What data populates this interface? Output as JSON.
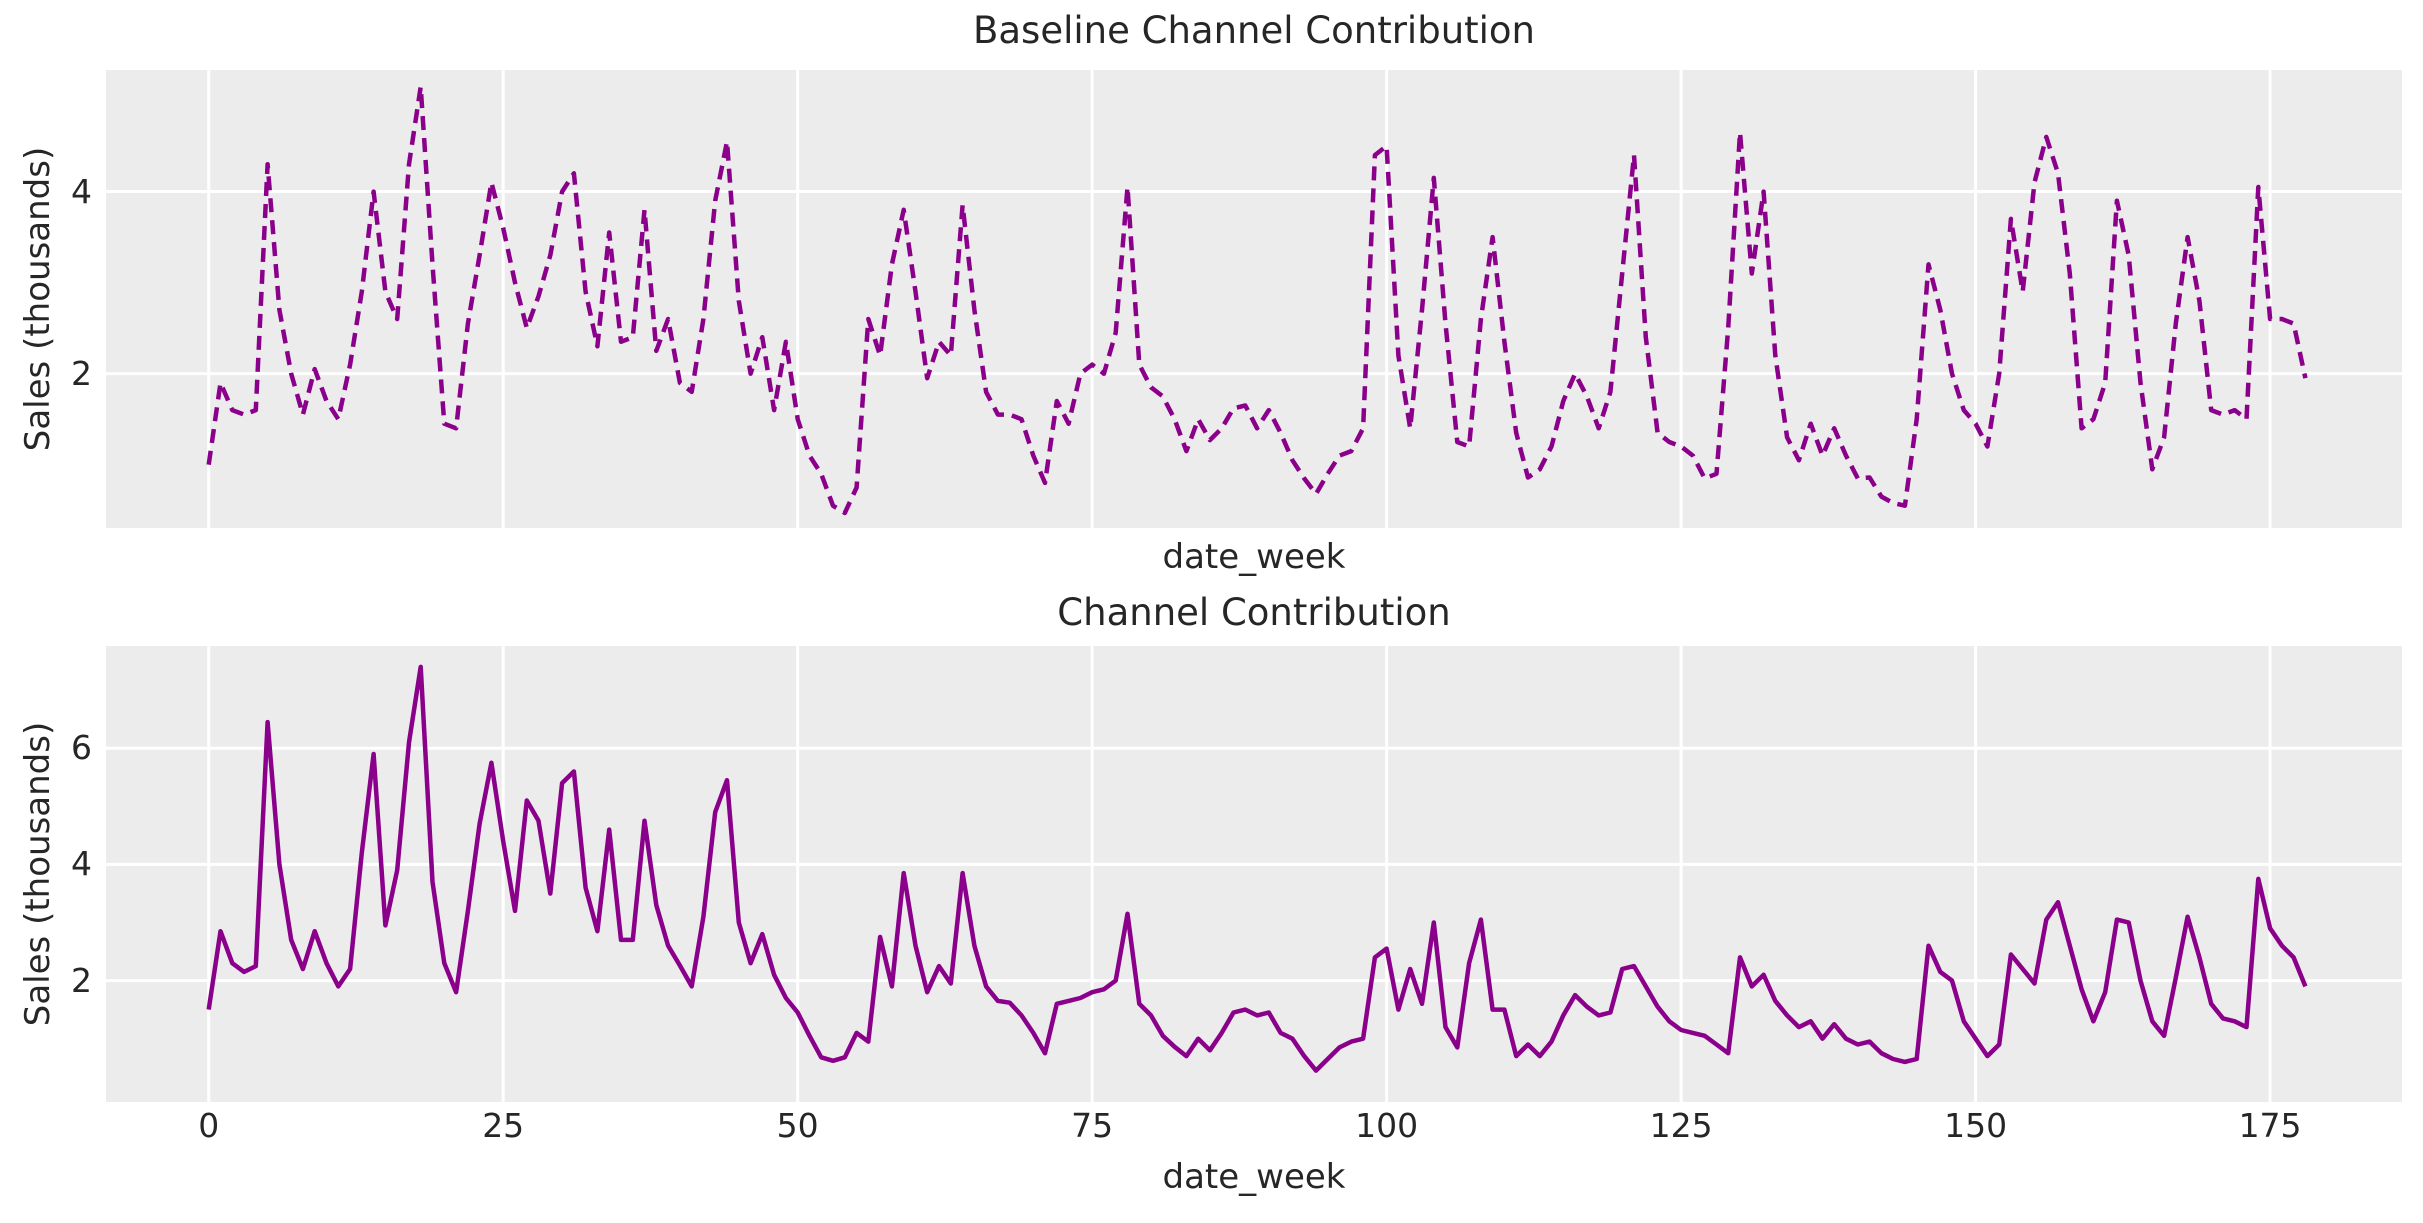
{
  "figure": {
    "background_color": "#ffffff",
    "axes_background_color": "#ECECEC",
    "grid_color": "#ffffff",
    "text_color": "#262626",
    "series_color": "#8B008B"
  },
  "chart_data": [
    {
      "type": "line",
      "title": "Baseline Channel Contribution",
      "xlabel": "date_week",
      "ylabel": "Sales (thousands)",
      "legend": "none",
      "grid": true,
      "line_style": "dashed",
      "color": "#8B008B",
      "x_start": 0,
      "x_step": 1,
      "xlim": [
        -8.72,
        186.2
      ],
      "ylim": [
        0.305,
        5.335
      ],
      "xticks": [
        0,
        25,
        50,
        75,
        100,
        125,
        150,
        175
      ],
      "xtick_labels": [],
      "yticks": [
        2,
        4
      ],
      "ytick_labels": [
        "2",
        "4"
      ],
      "values": [
        1.0,
        1.9,
        1.6,
        1.55,
        1.6,
        4.3,
        2.7,
        2.0,
        1.55,
        2.05,
        1.7,
        1.5,
        2.1,
        2.9,
        4.0,
        2.9,
        2.6,
        4.3,
        5.15,
        3.2,
        1.45,
        1.4,
        2.55,
        3.3,
        4.1,
        3.6,
        3.0,
        2.5,
        2.85,
        3.3,
        4.0,
        4.2,
        2.9,
        2.3,
        3.55,
        2.35,
        2.4,
        3.8,
        2.25,
        2.6,
        1.9,
        1.8,
        2.6,
        3.9,
        4.55,
        2.8,
        2.0,
        2.4,
        1.6,
        2.35,
        1.5,
        1.1,
        0.9,
        0.55,
        0.47,
        0.75,
        2.6,
        2.2,
        3.2,
        3.8,
        2.9,
        1.95,
        2.35,
        2.2,
        3.85,
        2.7,
        1.8,
        1.55,
        1.55,
        1.5,
        1.1,
        0.8,
        1.7,
        1.45,
        2.0,
        2.1,
        2.0,
        2.45,
        4.05,
        2.1,
        1.85,
        1.75,
        1.5,
        1.15,
        1.5,
        1.27,
        1.4,
        1.62,
        1.65,
        1.4,
        1.6,
        1.35,
        1.05,
        0.85,
        0.68,
        0.9,
        1.1,
        1.15,
        1.4,
        4.4,
        4.5,
        2.2,
        1.4,
        2.7,
        4.15,
        2.55,
        1.25,
        1.2,
        2.6,
        3.5,
        2.35,
        1.35,
        0.86,
        0.95,
        1.2,
        1.7,
        2.0,
        1.75,
        1.4,
        1.8,
        3.1,
        4.4,
        2.4,
        1.35,
        1.25,
        1.2,
        1.1,
        0.85,
        0.9,
        2.5,
        4.65,
        3.1,
        4.0,
        2.2,
        1.3,
        1.05,
        1.45,
        1.1,
        1.4,
        1.1,
        0.85,
        0.86,
        0.65,
        0.58,
        0.55,
        1.5,
        3.2,
        2.7,
        2.0,
        1.6,
        1.45,
        1.2,
        2.0,
        3.7,
        2.9,
        4.1,
        4.6,
        4.2,
        3.1,
        1.4,
        1.5,
        1.9,
        3.9,
        3.3,
        1.9,
        0.95,
        1.3,
        2.55,
        3.5,
        2.8,
        1.6,
        1.55,
        1.6,
        1.5,
        4.05,
        2.6,
        2.6,
        2.55,
        1.95
      ]
    },
    {
      "type": "line",
      "title": "Channel Contribution",
      "xlabel": "date_week",
      "ylabel": "Sales (thousands)",
      "legend": "none",
      "grid": true,
      "line_style": "solid",
      "color": "#8B008B",
      "x_start": 0,
      "x_step": 1,
      "xlim": [
        -8.72,
        186.2
      ],
      "ylim": [
        -0.09,
        7.76
      ],
      "xticks": [
        0,
        25,
        50,
        75,
        100,
        125,
        150,
        175
      ],
      "xtick_labels": [
        "0",
        "25",
        "50",
        "75",
        "100",
        "125",
        "150",
        "175"
      ],
      "yticks": [
        2,
        4,
        6
      ],
      "ytick_labels": [
        "2",
        "4",
        "6"
      ],
      "values": [
        1.5,
        2.85,
        2.3,
        2.15,
        2.25,
        6.45,
        4.0,
        2.7,
        2.2,
        2.85,
        2.3,
        1.9,
        2.2,
        4.2,
        5.9,
        2.95,
        3.9,
        6.1,
        7.4,
        3.7,
        2.3,
        1.8,
        3.2,
        4.7,
        5.75,
        4.4,
        3.2,
        5.1,
        4.75,
        3.5,
        5.4,
        5.6,
        3.6,
        2.85,
        4.6,
        2.7,
        2.7,
        4.75,
        3.3,
        2.6,
        2.26,
        1.9,
        3.1,
        4.9,
        5.45,
        3.0,
        2.3,
        2.8,
        2.1,
        1.7,
        1.45,
        1.05,
        0.68,
        0.62,
        0.68,
        1.1,
        0.95,
        2.75,
        1.9,
        3.85,
        2.6,
        1.8,
        2.25,
        1.95,
        3.85,
        2.6,
        1.9,
        1.65,
        1.62,
        1.4,
        1.1,
        0.75,
        1.6,
        1.65,
        1.7,
        1.8,
        1.85,
        2.0,
        3.15,
        1.6,
        1.4,
        1.05,
        0.86,
        0.7,
        1.0,
        0.8,
        1.1,
        1.45,
        1.5,
        1.4,
        1.45,
        1.1,
        1.0,
        0.7,
        0.45,
        0.65,
        0.85,
        0.95,
        1.0,
        2.4,
        2.55,
        1.5,
        2.2,
        1.6,
        3.0,
        1.2,
        0.85,
        2.3,
        3.05,
        1.5,
        1.5,
        0.7,
        0.9,
        0.7,
        0.95,
        1.4,
        1.75,
        1.55,
        1.4,
        1.45,
        2.2,
        2.25,
        1.9,
        1.55,
        1.3,
        1.15,
        1.1,
        1.05,
        0.9,
        0.75,
        2.4,
        1.9,
        2.1,
        1.65,
        1.4,
        1.2,
        1.3,
        1.0,
        1.25,
        1.0,
        0.9,
        0.95,
        0.75,
        0.65,
        0.6,
        0.65,
        2.6,
        2.15,
        2.0,
        1.3,
        1.0,
        0.7,
        0.9,
        2.45,
        2.2,
        1.95,
        3.05,
        3.35,
        2.6,
        1.85,
        1.3,
        1.8,
        3.05,
        3.0,
        2.0,
        1.3,
        1.05,
        2.05,
        3.1,
        2.4,
        1.6,
        1.35,
        1.3,
        1.2,
        3.75,
        2.9,
        2.6,
        2.4,
        1.9
      ]
    }
  ]
}
